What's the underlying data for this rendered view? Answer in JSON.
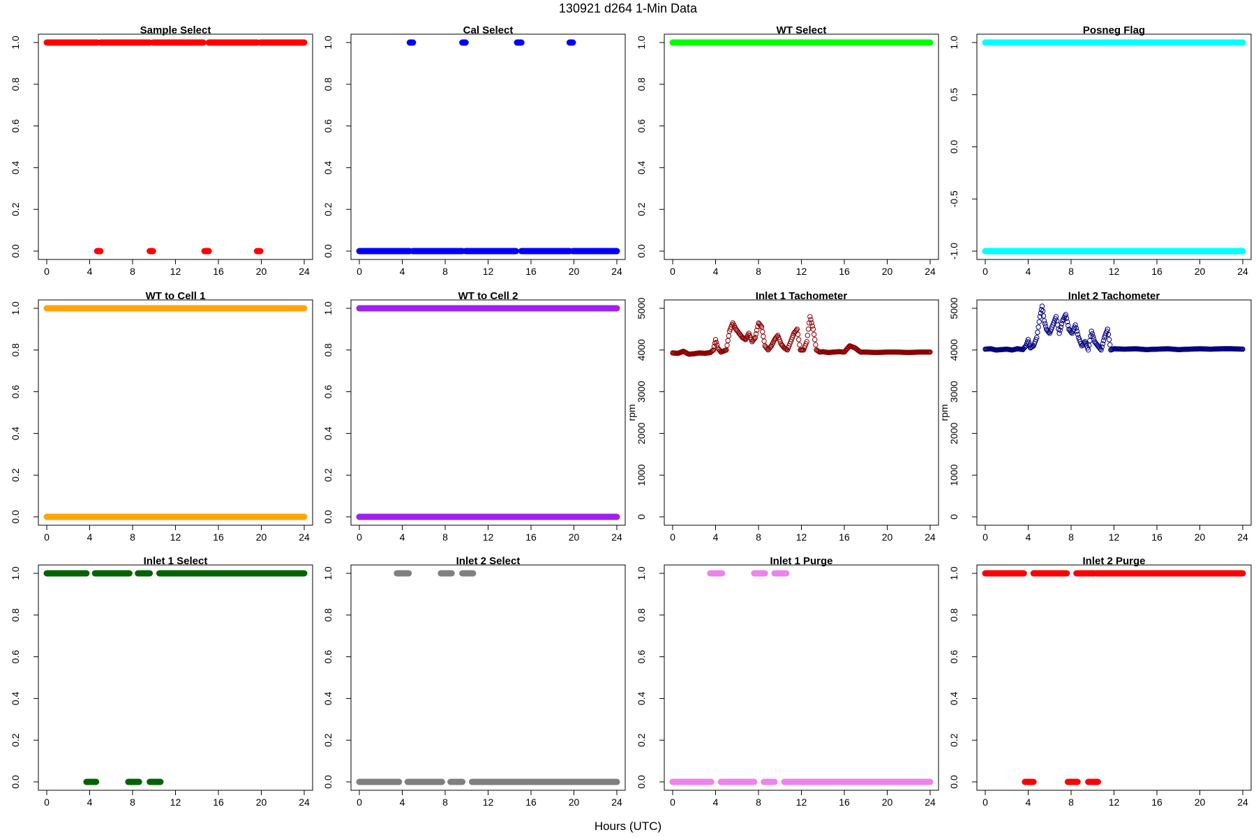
{
  "figure": {
    "title": "130921   d264   1-Min Data",
    "xlabel": "Hours (UTC)"
  },
  "chart_data": [
    {
      "type": "scatter",
      "title": "Sample Select",
      "color": "#ff0000",
      "marker": "filled",
      "xlim": [
        0,
        24
      ],
      "ylim": [
        0,
        1
      ],
      "xticks": [
        0,
        4,
        8,
        12,
        16,
        20,
        24
      ],
      "yticks": [
        0,
        0.2,
        0.4,
        0.6,
        0.8,
        1
      ],
      "ytick_labels": [
        "0.0",
        "0.2",
        "0.4",
        "0.6",
        "0.8",
        "1.0"
      ],
      "ylabel": "",
      "segments": [
        {
          "y": 1,
          "x": [
            0,
            4.7
          ]
        },
        {
          "y": 1,
          "x": [
            5.0,
            9.6
          ]
        },
        {
          "y": 1,
          "x": [
            9.9,
            14.6
          ]
        },
        {
          "y": 1,
          "x": [
            15.1,
            19.6
          ]
        },
        {
          "y": 1,
          "x": [
            19.9,
            24
          ]
        },
        {
          "y": 0,
          "x": [
            4.7,
            5.0
          ]
        },
        {
          "y": 0,
          "x": [
            9.6,
            9.9
          ]
        },
        {
          "y": 0,
          "x": [
            14.7,
            15.1
          ]
        },
        {
          "y": 0,
          "x": [
            19.6,
            19.9
          ]
        }
      ]
    },
    {
      "type": "scatter",
      "title": "Cal Select",
      "color": "#0000ff",
      "marker": "filled",
      "xlim": [
        0,
        24
      ],
      "ylim": [
        0,
        1
      ],
      "xticks": [
        0,
        4,
        8,
        12,
        16,
        20,
        24
      ],
      "yticks": [
        0,
        0.2,
        0.4,
        0.6,
        0.8,
        1
      ],
      "ytick_labels": [
        "0.0",
        "0.2",
        "0.4",
        "0.6",
        "0.8",
        "1.0"
      ],
      "ylabel": "",
      "segments": [
        {
          "y": 0,
          "x": [
            0,
            4.7
          ]
        },
        {
          "y": 0,
          "x": [
            5.0,
            9.6
          ]
        },
        {
          "y": 0,
          "x": [
            9.9,
            14.6
          ]
        },
        {
          "y": 0,
          "x": [
            15.1,
            19.6
          ]
        },
        {
          "y": 0,
          "x": [
            19.9,
            24
          ]
        },
        {
          "y": 1,
          "x": [
            4.7,
            5.0
          ]
        },
        {
          "y": 1,
          "x": [
            9.6,
            9.9
          ]
        },
        {
          "y": 1,
          "x": [
            14.7,
            15.1
          ]
        },
        {
          "y": 1,
          "x": [
            19.6,
            19.9
          ]
        }
      ]
    },
    {
      "type": "scatter",
      "title": "WT Select",
      "color": "#00ff00",
      "marker": "filled",
      "xlim": [
        0,
        24
      ],
      "ylim": [
        0,
        1
      ],
      "xticks": [
        0,
        4,
        8,
        12,
        16,
        20,
        24
      ],
      "yticks": [
        0,
        0.2,
        0.4,
        0.6,
        0.8,
        1
      ],
      "ytick_labels": [
        "0.0",
        "0.2",
        "0.4",
        "0.6",
        "0.8",
        "1.0"
      ],
      "ylabel": "",
      "segments": [
        {
          "y": 1,
          "x": [
            0,
            24
          ]
        }
      ]
    },
    {
      "type": "scatter",
      "title": "Posneg Flag",
      "color": "#00ffff",
      "marker": "filled",
      "xlim": [
        0,
        24
      ],
      "ylim": [
        -1,
        1
      ],
      "xticks": [
        0,
        4,
        8,
        12,
        16,
        20,
        24
      ],
      "yticks": [
        -1,
        -0.5,
        0,
        0.5,
        1
      ],
      "ytick_labels": [
        "-1.0",
        "-0.5",
        "0.0",
        "0.5",
        "1.0"
      ],
      "ylabel": "",
      "segments": [
        {
          "y": 1,
          "x": [
            0,
            24
          ]
        },
        {
          "y": -1,
          "x": [
            0,
            24
          ]
        }
      ]
    },
    {
      "type": "scatter",
      "title": "WT to Cell 1",
      "color": "#ffa500",
      "marker": "filled",
      "xlim": [
        0,
        24
      ],
      "ylim": [
        0,
        1
      ],
      "xticks": [
        0,
        4,
        8,
        12,
        16,
        20,
        24
      ],
      "yticks": [
        0,
        0.2,
        0.4,
        0.6,
        0.8,
        1
      ],
      "ytick_labels": [
        "0.0",
        "0.2",
        "0.4",
        "0.6",
        "0.8",
        "1.0"
      ],
      "ylabel": "",
      "segments": [
        {
          "y": 1,
          "x": [
            0,
            24
          ]
        },
        {
          "y": 0,
          "x": [
            0,
            24
          ]
        }
      ]
    },
    {
      "type": "scatter",
      "title": "WT to Cell 2",
      "color": "#a020f0",
      "marker": "filled",
      "xlim": [
        0,
        24
      ],
      "ylim": [
        0,
        1
      ],
      "xticks": [
        0,
        4,
        8,
        12,
        16,
        20,
        24
      ],
      "yticks": [
        0,
        0.2,
        0.4,
        0.6,
        0.8,
        1
      ],
      "ytick_labels": [
        "0.0",
        "0.2",
        "0.4",
        "0.6",
        "0.8",
        "1.0"
      ],
      "ylabel": "",
      "segments": [
        {
          "y": 1,
          "x": [
            0,
            24
          ]
        },
        {
          "y": 0,
          "x": [
            0,
            24
          ]
        }
      ]
    },
    {
      "type": "scatter",
      "title": "Inlet 1 Tachometer",
      "color": "#8b0000",
      "marker": "open",
      "xlim": [
        0,
        24
      ],
      "ylim": [
        0,
        5000
      ],
      "xticks": [
        0,
        4,
        8,
        12,
        16,
        20,
        24
      ],
      "yticks": [
        0,
        1000,
        2000,
        3000,
        4000,
        5000
      ],
      "ytick_labels": [
        "0",
        "1000",
        "2000",
        "3000",
        "4000",
        "5000"
      ],
      "ylabel": "rpm",
      "x": [
        0,
        0.5,
        1,
        1.5,
        2,
        2.5,
        3,
        3.5,
        3.8,
        4.0,
        4.2,
        4.5,
        5.0,
        5.3,
        5.6,
        5.9,
        6.2,
        6.5,
        6.8,
        7.1,
        7.4,
        7.7,
        8.0,
        8.3,
        8.6,
        8.9,
        9.2,
        9.5,
        9.8,
        10.1,
        10.4,
        10.7,
        11.0,
        11.3,
        11.6,
        11.9,
        12.2,
        12.5,
        12.8,
        13.1,
        13.4,
        13.7,
        14.0,
        14.5,
        15,
        15.5,
        16,
        16.5,
        17,
        17.5,
        18,
        19,
        20,
        21,
        22,
        23,
        24
      ],
      "y": [
        3930,
        3920,
        3970,
        3900,
        3910,
        3930,
        3920,
        3940,
        4000,
        4250,
        4050,
        3950,
        4000,
        4450,
        4650,
        4500,
        4400,
        4300,
        4250,
        4400,
        4200,
        4300,
        4650,
        4550,
        4100,
        4000,
        4100,
        4250,
        4350,
        4150,
        4050,
        4000,
        4200,
        4400,
        4500,
        4000,
        4000,
        4200,
        4800,
        4500,
        4000,
        3950,
        3960,
        3940,
        3950,
        3960,
        3950,
        4100,
        4050,
        3950,
        3950,
        3940,
        3950,
        3950,
        3940,
        3950,
        3950
      ]
    },
    {
      "type": "scatter",
      "title": "Inlet 2 Tachometer",
      "color": "#000080",
      "marker": "open",
      "xlim": [
        0,
        24
      ],
      "ylim": [
        0,
        5000
      ],
      "xticks": [
        0,
        4,
        8,
        12,
        16,
        20,
        24
      ],
      "yticks": [
        0,
        1000,
        2000,
        3000,
        4000,
        5000
      ],
      "ytick_labels": [
        "0",
        "1000",
        "2000",
        "3000",
        "4000",
        "5000"
      ],
      "ylabel": "rpm",
      "x": [
        0,
        0.5,
        1,
        1.5,
        2,
        2.5,
        3,
        3.5,
        3.8,
        4.0,
        4.2,
        4.5,
        4.8,
        5.1,
        5.3,
        5.5,
        5.7,
        6.0,
        6.3,
        6.6,
        6.9,
        7.2,
        7.5,
        7.8,
        8.1,
        8.4,
        8.7,
        9.0,
        9.3,
        9.6,
        9.9,
        10.2,
        10.5,
        10.8,
        11.1,
        11.4,
        11.7,
        12.0,
        13,
        14,
        15,
        16,
        17,
        18,
        19,
        20,
        21,
        22,
        23,
        24
      ],
      "y": [
        4020,
        4030,
        4000,
        4010,
        4020,
        4000,
        4030,
        4010,
        4100,
        4250,
        4050,
        4100,
        4300,
        4800,
        5050,
        4700,
        4500,
        4400,
        4600,
        4800,
        4400,
        4700,
        4850,
        4500,
        4400,
        4600,
        4300,
        4100,
        4200,
        4000,
        4450,
        4200,
        4100,
        4000,
        4300,
        4500,
        4000,
        4030,
        4020,
        4030,
        4010,
        4020,
        4030,
        4010,
        4020,
        4030,
        4020,
        4030,
        4030,
        4020
      ]
    },
    {
      "type": "scatter",
      "title": "Inlet 1 Select",
      "color": "#006400",
      "marker": "filled",
      "xlim": [
        0,
        24
      ],
      "ylim": [
        0,
        1
      ],
      "xticks": [
        0,
        4,
        8,
        12,
        16,
        20,
        24
      ],
      "yticks": [
        0,
        0.2,
        0.4,
        0.6,
        0.8,
        1
      ],
      "ytick_labels": [
        "0.0",
        "0.2",
        "0.4",
        "0.6",
        "0.8",
        "1.0"
      ],
      "ylabel": "",
      "segments": [
        {
          "y": 1,
          "x": [
            0,
            3.7
          ]
        },
        {
          "y": 1,
          "x": [
            4.5,
            7.7
          ]
        },
        {
          "y": 1,
          "x": [
            8.5,
            9.6
          ]
        },
        {
          "y": 1,
          "x": [
            10.5,
            24
          ]
        },
        {
          "y": 0,
          "x": [
            3.7,
            4.6
          ]
        },
        {
          "y": 0,
          "x": [
            7.6,
            8.6
          ]
        },
        {
          "y": 0,
          "x": [
            9.6,
            10.6
          ]
        }
      ]
    },
    {
      "type": "scatter",
      "title": "Inlet 2 Select",
      "color": "#808080",
      "marker": "filled",
      "xlim": [
        0,
        24
      ],
      "ylim": [
        0,
        1
      ],
      "xticks": [
        0,
        4,
        8,
        12,
        16,
        20,
        24
      ],
      "yticks": [
        0,
        0.2,
        0.4,
        0.6,
        0.8,
        1
      ],
      "ytick_labels": [
        "0.0",
        "0.2",
        "0.4",
        "0.6",
        "0.8",
        "1.0"
      ],
      "ylabel": "",
      "segments": [
        {
          "y": 0,
          "x": [
            0,
            3.7
          ]
        },
        {
          "y": 0,
          "x": [
            4.5,
            7.7
          ]
        },
        {
          "y": 0,
          "x": [
            8.5,
            9.6
          ]
        },
        {
          "y": 0,
          "x": [
            10.5,
            24
          ]
        },
        {
          "y": 1,
          "x": [
            3.5,
            4.6
          ]
        },
        {
          "y": 1,
          "x": [
            7.6,
            8.6
          ]
        },
        {
          "y": 1,
          "x": [
            9.6,
            10.6
          ]
        }
      ]
    },
    {
      "type": "scatter",
      "title": "Inlet 1 Purge",
      "color": "#ee82ee",
      "marker": "filled",
      "xlim": [
        0,
        24
      ],
      "ylim": [
        0,
        1
      ],
      "xticks": [
        0,
        4,
        8,
        12,
        16,
        20,
        24
      ],
      "yticks": [
        0,
        0.2,
        0.4,
        0.6,
        0.8,
        1
      ],
      "ytick_labels": [
        "0.0",
        "0.2",
        "0.4",
        "0.6",
        "0.8",
        "1.0"
      ],
      "ylabel": "",
      "segments": [
        {
          "y": 0,
          "x": [
            0,
            3.6
          ]
        },
        {
          "y": 0,
          "x": [
            4.5,
            7.6
          ]
        },
        {
          "y": 0,
          "x": [
            8.5,
            9.5
          ]
        },
        {
          "y": 0,
          "x": [
            10.4,
            24
          ]
        },
        {
          "y": 1,
          "x": [
            3.5,
            4.6
          ]
        },
        {
          "y": 1,
          "x": [
            7.6,
            8.6
          ]
        },
        {
          "y": 1,
          "x": [
            9.5,
            10.6
          ]
        }
      ]
    },
    {
      "type": "scatter",
      "title": "Inlet 2 Purge",
      "color": "#ff0000",
      "marker": "filled",
      "xlim": [
        0,
        24
      ],
      "ylim": [
        0,
        1
      ],
      "xticks": [
        0,
        4,
        8,
        12,
        16,
        20,
        24
      ],
      "yticks": [
        0,
        0.2,
        0.4,
        0.6,
        0.8,
        1
      ],
      "ytick_labels": [
        "0.0",
        "0.2",
        "0.4",
        "0.6",
        "0.8",
        "1.0"
      ],
      "ylabel": "",
      "segments": [
        {
          "y": 1,
          "x": [
            0,
            3.6
          ]
        },
        {
          "y": 1,
          "x": [
            4.5,
            7.6
          ]
        },
        {
          "y": 1,
          "x": [
            8.5,
            10.2
          ]
        },
        {
          "y": 1,
          "x": [
            10.4,
            24
          ]
        },
        {
          "y": 0,
          "x": [
            3.7,
            4.5
          ]
        },
        {
          "y": 0,
          "x": [
            7.7,
            8.6
          ]
        },
        {
          "y": 0,
          "x": [
            9.6,
            10.5
          ]
        }
      ]
    }
  ]
}
